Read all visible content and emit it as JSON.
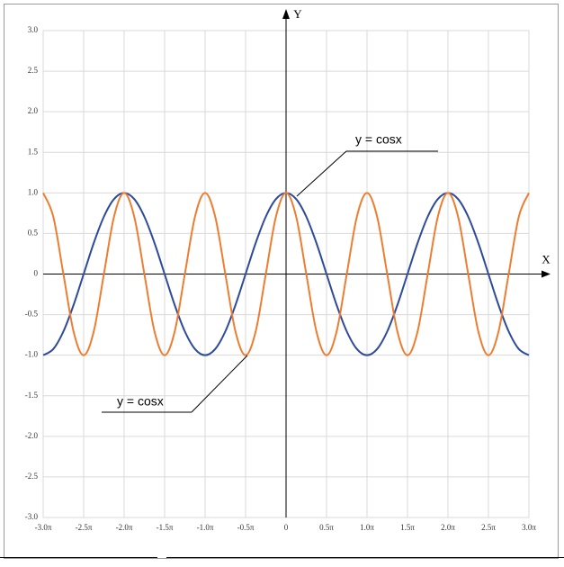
{
  "chart_data": {
    "type": "line",
    "x_label": "X",
    "y_label": "Y",
    "x": [
      -3,
      -2.875,
      -2.75,
      -2.625,
      -2.5,
      -2.375,
      -2.25,
      -2.125,
      -2,
      -1.875,
      -1.75,
      -1.625,
      -1.5,
      -1.375,
      -1.25,
      -1.125,
      -1,
      -0.875,
      -0.75,
      -0.625,
      -0.5,
      -0.375,
      -0.25,
      -0.125,
      0,
      0.125,
      0.25,
      0.375,
      0.5,
      0.625,
      0.75,
      0.875,
      1,
      1.125,
      1.25,
      1.375,
      1.5,
      1.625,
      1.75,
      1.875,
      2,
      2.125,
      2.25,
      2.375,
      2.5,
      2.625,
      2.75,
      2.875,
      3
    ],
    "series": [
      {
        "color": "#2e4b9b",
        "values": [
          -1,
          -0.9239,
          -0.7071,
          -0.3827,
          0,
          0.3827,
          0.7071,
          0.9239,
          1,
          0.9239,
          0.7071,
          0.3827,
          0,
          -0.3827,
          -0.7071,
          -0.9239,
          -1,
          -0.9239,
          -0.7071,
          -0.3827,
          0,
          0.3827,
          0.7071,
          0.9239,
          1,
          0.9239,
          0.7071,
          0.3827,
          0,
          -0.3827,
          -0.7071,
          -0.9239,
          -1,
          -0.9239,
          -0.7071,
          -0.3827,
          0,
          0.3827,
          0.7071,
          0.9239,
          1,
          0.9239,
          0.7071,
          0.3827,
          0,
          -0.3827,
          -0.7071,
          -0.9239,
          -1
        ]
      },
      {
        "color": "#ed7d31",
        "values": [
          1,
          0.7071,
          0,
          -0.7071,
          -1,
          -0.7071,
          0,
          0.7071,
          1,
          0.7071,
          0,
          -0.7071,
          -1,
          -0.7071,
          0,
          0.7071,
          1,
          0.7071,
          0,
          -0.7071,
          -1,
          -0.7071,
          0,
          0.7071,
          1,
          0.7071,
          0,
          -0.7071,
          -1,
          -0.7071,
          0,
          0.7071,
          1,
          0.7071,
          0,
          -0.7071,
          -1,
          -0.7071,
          0,
          0.7071,
          1,
          0.7071,
          0,
          -0.7071,
          -1,
          -0.7071,
          0,
          0.7071,
          1
        ]
      }
    ],
    "xlim": [
      -3,
      3
    ],
    "ylim": [
      -3,
      3
    ],
    "xticks": [
      {
        "value": -3,
        "label": "-3.0π"
      },
      {
        "value": -2.5,
        "label": "-2.5π"
      },
      {
        "value": -2,
        "label": "-2.0π"
      },
      {
        "value": -1.5,
        "label": "-1.5π"
      },
      {
        "value": -1,
        "label": "-1.0π"
      },
      {
        "value": -0.5,
        "label": "-0.5π"
      },
      0,
      {
        "value": 0.5,
        "label": "0.5π"
      },
      {
        "value": 1,
        "label": "1.0π"
      },
      {
        "value": 1.5,
        "label": "1.5π"
      },
      {
        "value": 2,
        "label": "2.0π"
      },
      {
        "value": 2.5,
        "label": "2.5π"
      },
      {
        "value": 3,
        "label": "3.0π"
      }
    ],
    "yticks": [
      {
        "value": -3,
        "label": "-3.0"
      },
      -2.5,
      {
        "value": -2,
        "label": "-2.0"
      },
      -1.5,
      {
        "value": -1,
        "label": "-1.0"
      },
      -0.5,
      0,
      0.5,
      {
        "value": 1,
        "label": "1.0"
      },
      1.5,
      {
        "value": 2,
        "label": "2.0"
      },
      2.5,
      {
        "value": 3,
        "label": "3.0"
      }
    ],
    "grid": true,
    "annotations": [
      "y = cosx",
      "y = cosx"
    ]
  }
}
